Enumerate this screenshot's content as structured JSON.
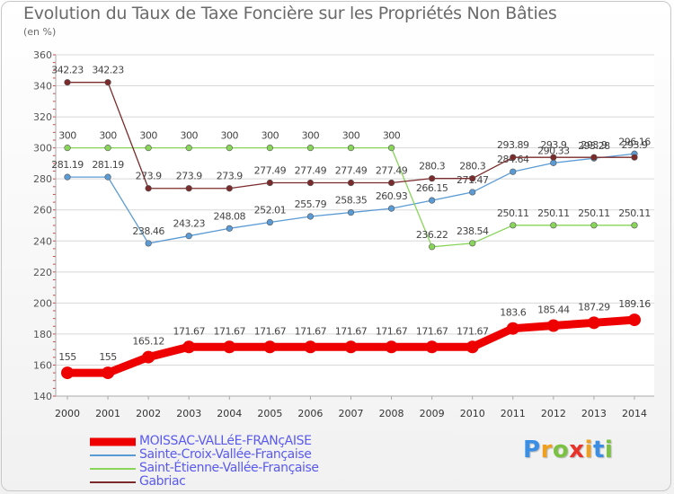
{
  "header": {
    "title": "Evolution du Taux de Taxe Foncière sur les Propriétés Non Bâties",
    "unit": "(en %)"
  },
  "logo": {
    "letters": [
      "P",
      "r",
      "o",
      "x",
      "i",
      "t",
      "i"
    ],
    "colors": [
      "#3a8ee6",
      "#f0a020",
      "#7cc242",
      "#e8322a",
      "#f0a020",
      "#3a8ee6",
      "#7cc242"
    ]
  },
  "chart_data": {
    "type": "line",
    "title": "Evolution du Taux de Taxe Foncière sur les Propriétés Non Bâties",
    "ylabel": "(en %)",
    "xlabel": "",
    "ylim": [
      140,
      360
    ],
    "yticks": [
      140,
      160,
      180,
      200,
      220,
      240,
      260,
      280,
      300,
      320,
      340,
      360
    ],
    "x": [
      "2000",
      "2001",
      "2002",
      "2003",
      "2004",
      "2005",
      "2006",
      "2007",
      "2008",
      "2009",
      "2010",
      "2011",
      "2012",
      "2013",
      "2014"
    ],
    "series": [
      {
        "name": "MOISSAC-VALLéE-FRANçAISE",
        "color": "#ee0000",
        "values": [
          155,
          155,
          165.12,
          171.67,
          171.67,
          171.67,
          171.67,
          171.67,
          171.67,
          171.67,
          171.67,
          183.6,
          185.44,
          187.29,
          189.16
        ],
        "labels": [
          "155",
          "155",
          "165.12",
          "171.67",
          "171.67",
          "171.67",
          "171.67",
          "171.67",
          "171.67",
          "171.67",
          "171.67",
          "183.6",
          "185.44",
          "187.29",
          "189.16"
        ]
      },
      {
        "name": "Sainte-Croix-Vallée-Française",
        "color": "#5b9bd5",
        "values": [
          281.19,
          281.19,
          238.46,
          243.23,
          248.08,
          252.01,
          255.79,
          258.35,
          260.93,
          266.15,
          271.47,
          284.64,
          290.33,
          293.28,
          296.16
        ],
        "labels": [
          "281.19",
          "281.19",
          "238.46",
          "243.23",
          "248.08",
          "252.01",
          "255.79",
          "258.35",
          "260.93",
          "266.15",
          "271.47",
          "284.64",
          "290.33",
          "293.28",
          "296.16"
        ]
      },
      {
        "name": "Saint-Étienne-Vallée-Française",
        "color": "#88d55a",
        "values": [
          300,
          300,
          300,
          300,
          300,
          300,
          300,
          300,
          300,
          236.22,
          238.54,
          250.11,
          250.11,
          250.11,
          250.11
        ],
        "labels": [
          "300",
          "300",
          "300",
          "300",
          "300",
          "300",
          "300",
          "300",
          "300",
          "236.22",
          "238.54",
          "250.11",
          "250.11",
          "250.11",
          "250.11"
        ]
      },
      {
        "name": "Gabriac",
        "color": "#7b2b2b",
        "values": [
          342.23,
          342.23,
          273.9,
          273.9,
          273.9,
          277.49,
          277.49,
          277.49,
          277.49,
          280.3,
          280.3,
          293.89,
          293.9,
          293.9,
          293.9
        ],
        "labels": [
          "342.23",
          "342.23",
          "273.9",
          "273.9",
          "273.9",
          "277.49",
          "277.49",
          "277.49",
          "277.49",
          "280.3",
          "280.3",
          "293.89",
          "293.9",
          "293.9",
          "293.9"
        ]
      }
    ]
  }
}
